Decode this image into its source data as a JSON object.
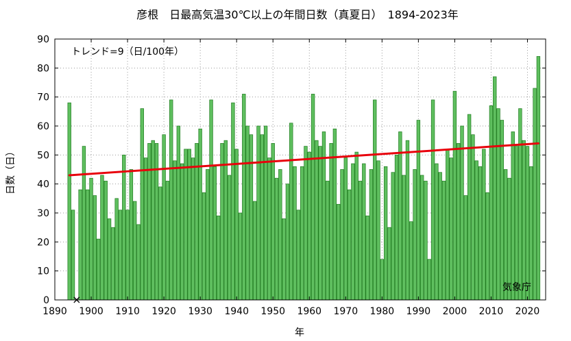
{
  "chart_data": {
    "type": "bar",
    "title": "彦根　日最高気温30℃以上の年間日数（真夏日）　1894-2023年",
    "xlabel": "年",
    "ylabel": "日数（日）",
    "trend_label": "トレンド=9（日/100年）",
    "source": "気象庁",
    "xlim": [
      1890,
      2025
    ],
    "ylim": [
      0,
      90
    ],
    "x_ticks": [
      1890,
      1900,
      1910,
      1920,
      1930,
      1940,
      1950,
      1960,
      1970,
      1980,
      1990,
      2000,
      2010,
      2020
    ],
    "y_ticks": [
      0,
      10,
      20,
      30,
      40,
      50,
      60,
      70,
      80,
      90
    ],
    "grid": true,
    "bar_color": "#5fbf5f",
    "bar_edge_color": "#1f7a1f",
    "trend_color": "#e8000b",
    "missing_marker": {
      "year": 1896,
      "value": 0,
      "symbol": "×"
    },
    "trend": {
      "x": [
        1894,
        2023
      ],
      "y": [
        43,
        54
      ]
    },
    "years": [
      1894,
      1895,
      1896,
      1897,
      1898,
      1899,
      1900,
      1901,
      1902,
      1903,
      1904,
      1905,
      1906,
      1907,
      1908,
      1909,
      1910,
      1911,
      1912,
      1913,
      1914,
      1915,
      1916,
      1917,
      1918,
      1919,
      1920,
      1921,
      1922,
      1923,
      1924,
      1925,
      1926,
      1927,
      1928,
      1929,
      1930,
      1931,
      1932,
      1933,
      1934,
      1935,
      1936,
      1937,
      1938,
      1939,
      1940,
      1941,
      1942,
      1943,
      1944,
      1945,
      1946,
      1947,
      1948,
      1949,
      1950,
      1951,
      1952,
      1953,
      1954,
      1955,
      1956,
      1957,
      1958,
      1959,
      1960,
      1961,
      1962,
      1963,
      1964,
      1965,
      1966,
      1967,
      1968,
      1969,
      1970,
      1971,
      1972,
      1973,
      1974,
      1975,
      1976,
      1977,
      1978,
      1979,
      1980,
      1981,
      1982,
      1983,
      1984,
      1985,
      1986,
      1987,
      1988,
      1989,
      1990,
      1991,
      1992,
      1993,
      1994,
      1995,
      1996,
      1997,
      1998,
      1999,
      2000,
      2001,
      2002,
      2003,
      2004,
      2005,
      2006,
      2007,
      2008,
      2009,
      2010,
      2011,
      2012,
      2013,
      2014,
      2015,
      2016,
      2017,
      2018,
      2019,
      2020,
      2021,
      2022,
      2023
    ],
    "values": [
      68,
      31,
      null,
      38,
      53,
      38,
      42,
      36,
      21,
      43,
      41,
      28,
      25,
      35,
      31,
      50,
      31,
      45,
      34,
      26,
      66,
      49,
      54,
      55,
      54,
      39,
      57,
      41,
      69,
      48,
      60,
      47,
      52,
      52,
      49,
      54,
      59,
      37,
      45,
      69,
      46,
      29,
      54,
      55,
      43,
      68,
      52,
      30,
      71,
      60,
      57,
      34,
      60,
      57,
      60,
      49,
      54,
      42,
      45,
      28,
      40,
      61,
      46,
      31,
      46,
      53,
      51,
      71,
      55,
      53,
      58,
      41,
      54,
      59,
      33,
      45,
      49,
      38,
      47,
      51,
      41,
      47,
      29,
      45,
      69,
      48,
      14,
      46,
      25,
      44,
      50,
      58,
      43,
      55,
      27,
      45,
      62,
      43,
      41,
      14,
      69,
      47,
      44,
      41,
      52,
      49,
      72,
      54,
      60,
      36,
      64,
      57,
      48,
      46,
      52,
      37,
      67,
      77,
      66,
      62,
      45,
      42,
      58,
      53,
      66,
      55,
      53,
      46,
      73,
      84
    ]
  }
}
